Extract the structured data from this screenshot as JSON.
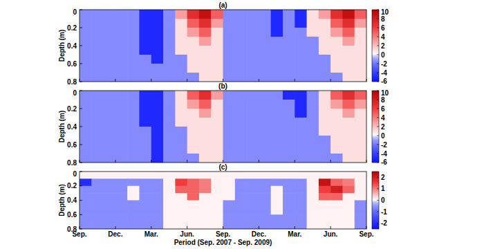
{
  "chart_data": [
    {
      "type": "heatmap",
      "title": "(a)",
      "ylabel": "Depth (m)",
      "x_edges": [
        0,
        1,
        2,
        3,
        4,
        5,
        6,
        7,
        8,
        9,
        10,
        11,
        12,
        13,
        14,
        15,
        16,
        17,
        18,
        19,
        20,
        21,
        22,
        23,
        24
      ],
      "y_edges": [
        0,
        0.1,
        0.2,
        0.3,
        0.4,
        0.5,
        0.6,
        0.7,
        0.8
      ],
      "xlim": [
        0,
        24
      ],
      "ylim": [
        0,
        0.8
      ],
      "xticks": [
        {
          "value": 0,
          "label": "Sep."
        },
        {
          "value": 3,
          "label": "Dec."
        },
        {
          "value": 6,
          "label": "Mar."
        },
        {
          "value": 9,
          "label": "Jun."
        },
        {
          "value": 12,
          "label": "Sep."
        },
        {
          "value": 15,
          "label": "Dec."
        },
        {
          "value": 18,
          "label": "Mar."
        },
        {
          "value": 21,
          "label": "Jun."
        },
        {
          "value": 24,
          "label": "Sep."
        }
      ],
      "yticks": [
        0,
        0.2,
        0.4,
        0.6,
        0.8
      ],
      "tick_labels": "y",
      "colorbar_range": [
        -6,
        10
      ],
      "colorbar_ticks": [
        -6,
        -4,
        -2,
        0,
        2,
        4,
        6,
        8,
        10
      ],
      "cells": [
        [
          -1.5,
          -1.5,
          -1.5,
          -1.5,
          -1.5,
          -5,
          -5,
          -1.5,
          3,
          7,
          9,
          5,
          -1.5,
          -1.5,
          -1.5,
          -1.5,
          -5,
          -1.5,
          -5,
          1,
          3,
          7,
          9,
          5
        ],
        [
          -1.5,
          -1.5,
          -1.5,
          -1.5,
          -1.5,
          -5,
          -5,
          -1.5,
          1,
          5,
          7,
          3,
          -1.5,
          -1.5,
          -1.5,
          -1.5,
          -5,
          -1.5,
          -5,
          1,
          1,
          5,
          7,
          3
        ],
        [
          -1.5,
          -1.5,
          -1.5,
          -1.5,
          -1.5,
          -5,
          -5,
          -1.5,
          1,
          3,
          5,
          1,
          -1.5,
          -1.5,
          -1.5,
          -1.5,
          -5,
          -1.5,
          -1.5,
          1,
          1,
          3,
          5,
          1
        ],
        [
          -1.5,
          -1.5,
          -1.5,
          -1.5,
          -1.5,
          -5,
          -5,
          -1.5,
          1,
          1,
          3,
          1,
          -1.5,
          -1.5,
          -1.5,
          -1.5,
          -1.5,
          -1.5,
          -1.5,
          -1.5,
          1,
          1,
          3,
          1
        ],
        [
          -1.5,
          -1.5,
          -1.5,
          -1.5,
          -1.5,
          -5,
          -5,
          -1.5,
          1,
          1,
          1,
          1,
          -1.5,
          -1.5,
          -1.5,
          -1.5,
          -1.5,
          -1.5,
          -1.5,
          -1.5,
          1,
          1,
          1,
          1
        ],
        [
          -1.5,
          -1.5,
          -1.5,
          -1.5,
          -1.5,
          -1.5,
          -5,
          -1.5,
          -1.5,
          1,
          1,
          1,
          -1.5,
          -1.5,
          -1.5,
          -1.5,
          -1.5,
          -1.5,
          -1.5,
          -1.5,
          -1.5,
          1,
          1,
          1
        ],
        [
          -1.5,
          -1.5,
          -1.5,
          -1.5,
          -1.5,
          -1.5,
          -1.5,
          -1.5,
          -1.5,
          1,
          1,
          1,
          -1.5,
          -1.5,
          -1.5,
          -1.5,
          -1.5,
          -1.5,
          -1.5,
          -1.5,
          -1.5,
          1,
          1,
          1
        ],
        [
          -1.5,
          -1.5,
          -1.5,
          -1.5,
          -1.5,
          -1.5,
          -1.5,
          -1.5,
          -1.5,
          -1.5,
          1,
          1,
          -1.5,
          -1.5,
          -1.5,
          -1.5,
          -1.5,
          -1.5,
          -1.5,
          -1.5,
          -1.5,
          -1.5,
          1,
          1
        ]
      ]
    },
    {
      "type": "heatmap",
      "title": "(b)",
      "ylabel": "Depth (m)",
      "x_edges": [
        0,
        1,
        2,
        3,
        4,
        5,
        6,
        7,
        8,
        9,
        10,
        11,
        12,
        13,
        14,
        15,
        16,
        17,
        18,
        19,
        20,
        21,
        22,
        23,
        24
      ],
      "y_edges": [
        0,
        0.1,
        0.2,
        0.3,
        0.4,
        0.5,
        0.6,
        0.7,
        0.8
      ],
      "xlim": [
        0,
        24
      ],
      "ylim": [
        0,
        0.8
      ],
      "xticks": [
        {
          "value": 0,
          "label": "Sep."
        },
        {
          "value": 3,
          "label": "Dec."
        },
        {
          "value": 6,
          "label": "Mar."
        },
        {
          "value": 9,
          "label": "Jun."
        },
        {
          "value": 12,
          "label": "Sep."
        },
        {
          "value": 15,
          "label": "Dec."
        },
        {
          "value": 18,
          "label": "Mar."
        },
        {
          "value": 21,
          "label": "Jun."
        },
        {
          "value": 24,
          "label": "Sep."
        }
      ],
      "yticks": [
        0,
        0.2,
        0.4,
        0.6,
        0.8
      ],
      "tick_labels": "y",
      "colorbar_range": [
        -6,
        10
      ],
      "colorbar_ticks": [
        -6,
        -4,
        -2,
        0,
        2,
        4,
        6,
        8,
        10
      ],
      "cells": [
        [
          -1.5,
          -1.5,
          -1.5,
          -1.5,
          -1.5,
          -5,
          -5,
          -1.5,
          1,
          5,
          7,
          3,
          -1.5,
          -1.5,
          -1.5,
          -1.5,
          -1.5,
          -5,
          -5,
          -1.5,
          1,
          5,
          7,
          5
        ],
        [
          -1.5,
          -1.5,
          -1.5,
          -1.5,
          -1.5,
          -5,
          -5,
          -1.5,
          1,
          3,
          5,
          1,
          -1.5,
          -1.5,
          -1.5,
          -1.5,
          -1.5,
          -1.5,
          -5,
          -1.5,
          1,
          3,
          5,
          3
        ],
        [
          -1.5,
          -1.5,
          -1.5,
          -1.5,
          -1.5,
          -5,
          -5,
          -1.5,
          1,
          1,
          3,
          1,
          -1.5,
          -1.5,
          -1.5,
          -1.5,
          -1.5,
          -1.5,
          -5,
          -1.5,
          1,
          1,
          3,
          1
        ],
        [
          -1.5,
          -1.5,
          -1.5,
          -1.5,
          -1.5,
          -5,
          -5,
          -1.5,
          1,
          1,
          1,
          1,
          -1.5,
          -1.5,
          -1.5,
          -1.5,
          -1.5,
          -1.5,
          -1.5,
          -1.5,
          1,
          1,
          1,
          1
        ],
        [
          -1.5,
          -1.5,
          -1.5,
          -1.5,
          -1.5,
          -1.5,
          -5,
          -1.5,
          -1.5,
          1,
          1,
          1,
          -1.5,
          -1.5,
          -1.5,
          -1.5,
          -1.5,
          -1.5,
          -1.5,
          -1.5,
          1,
          1,
          1,
          1
        ],
        [
          -1.5,
          -1.5,
          -1.5,
          -1.5,
          -1.5,
          -1.5,
          -5,
          -1.5,
          -1.5,
          1,
          1,
          1,
          -1.5,
          -1.5,
          -1.5,
          -1.5,
          -1.5,
          -1.5,
          -1.5,
          -1.5,
          -1.5,
          1,
          1,
          1
        ],
        [
          -1.5,
          -1.5,
          -1.5,
          -1.5,
          -1.5,
          -1.5,
          -5,
          -1.5,
          -1.5,
          1,
          1,
          1,
          -1.5,
          -1.5,
          -1.5,
          -1.5,
          -1.5,
          -1.5,
          -1.5,
          -1.5,
          -1.5,
          1,
          1,
          1
        ],
        [
          -1.5,
          -1.5,
          -1.5,
          -1.5,
          -1.5,
          -1.5,
          -5,
          -1.5,
          -1.5,
          -1.5,
          1,
          1,
          -1.5,
          -1.5,
          -1.5,
          -1.5,
          -1.5,
          -1.5,
          -1.5,
          -1.5,
          -1.5,
          -1.5,
          1,
          1
        ]
      ]
    },
    {
      "type": "heatmap",
      "title": "(c)",
      "ylabel": "Depth (m)",
      "xlabel": "Period (Sep. 2007 - Sep. 2009)",
      "x_edges": [
        0,
        1,
        2,
        3,
        4,
        5,
        6,
        7,
        8,
        9,
        10,
        11,
        12,
        13,
        14,
        15,
        16,
        17,
        18,
        19,
        20,
        21,
        22,
        23,
        24
      ],
      "y_edges": [
        0,
        0.1,
        0.2,
        0.3,
        0.4,
        0.5,
        0.6,
        0.7,
        0.8
      ],
      "xlim": [
        0,
        24
      ],
      "ylim": [
        0,
        0.8
      ],
      "xticks": [
        {
          "value": 0,
          "label": "Sep."
        },
        {
          "value": 3,
          "label": "Dec."
        },
        {
          "value": 6,
          "label": "Mar."
        },
        {
          "value": 9,
          "label": "Jun."
        },
        {
          "value": 12,
          "label": "Sep."
        },
        {
          "value": 15,
          "label": "Dec."
        },
        {
          "value": 18,
          "label": "Mar."
        },
        {
          "value": 21,
          "label": "Jun."
        },
        {
          "value": 24,
          "label": "Sep."
        }
      ],
      "yticks": [
        0,
        0.2,
        0.4,
        0.6,
        0.8
      ],
      "colorbar_range": [
        -2.5,
        2.5
      ],
      "colorbar_ticks": [
        -2,
        -1,
        0,
        1,
        2
      ],
      "cells": [
        [
          0.1,
          0.1,
          0.1,
          0.1,
          0.1,
          0.1,
          0.1,
          0.1,
          0.1,
          0.1,
          0.1,
          0.1,
          0.1,
          0.1,
          0.1,
          0.1,
          0.1,
          0.1,
          0.1,
          0.1,
          0.1,
          0.1,
          0.1,
          0.1
        ],
        [
          -2,
          -0.6,
          -0.6,
          -0.6,
          -0.6,
          -0.6,
          -0.6,
          0.1,
          1.5,
          1.2,
          1,
          0.1,
          0.1,
          -0.6,
          -0.6,
          -0.6,
          -0.6,
          -0.6,
          -0.6,
          0.1,
          2.2,
          1.2,
          1,
          0.1
        ],
        [
          -0.6,
          -0.6,
          -0.6,
          -0.6,
          0.1,
          -0.6,
          -0.6,
          0.1,
          1.2,
          1.2,
          1,
          0.1,
          0.1,
          -0.6,
          -0.6,
          -0.6,
          0.1,
          -0.6,
          -0.6,
          0.1,
          1.5,
          2,
          1.2,
          0.1
        ],
        [
          -0.6,
          -0.6,
          -0.6,
          -0.6,
          0.1,
          -0.6,
          -0.6,
          0.1,
          0.1,
          1.2,
          0.1,
          0.1,
          0.1,
          -0.6,
          -0.6,
          -0.6,
          0.1,
          -0.6,
          -0.6,
          0.1,
          1.2,
          1.2,
          0.1,
          0.1
        ],
        [
          -0.6,
          -0.6,
          -0.6,
          -0.6,
          -0.6,
          -0.6,
          -0.6,
          0.1,
          0.1,
          0.1,
          0.1,
          0.1,
          -0.6,
          -0.6,
          -0.6,
          -0.6,
          0.1,
          -0.6,
          -0.6,
          0.1,
          0.1,
          0.1,
          0.1,
          -0.6
        ],
        [
          -0.6,
          -0.6,
          -0.6,
          -0.6,
          -0.6,
          -0.6,
          -0.6,
          0.1,
          0.1,
          0.1,
          0.1,
          0.1,
          -0.6,
          -0.6,
          -0.6,
          -0.6,
          0.1,
          -0.6,
          -0.6,
          0.1,
          0.1,
          0.1,
          0.1,
          -0.6
        ],
        [
          -0.6,
          -0.6,
          -0.6,
          -0.6,
          -0.6,
          -0.6,
          -0.6,
          0.1,
          0.1,
          0.1,
          0.1,
          0.1,
          -0.6,
          -0.6,
          -0.6,
          -0.6,
          -0.6,
          -0.6,
          -0.6,
          0.1,
          0.1,
          0.1,
          0.1,
          -0.6
        ],
        [
          -0.6,
          -0.6,
          -0.6,
          -0.6,
          -0.6,
          -0.6,
          -0.6,
          0.1,
          0.1,
          0.1,
          0.1,
          0.1,
          -0.6,
          -0.6,
          -0.6,
          -0.6,
          -0.6,
          -0.6,
          -0.6,
          0.1,
          0.1,
          0.1,
          0.1,
          -0.6
        ]
      ]
    }
  ]
}
